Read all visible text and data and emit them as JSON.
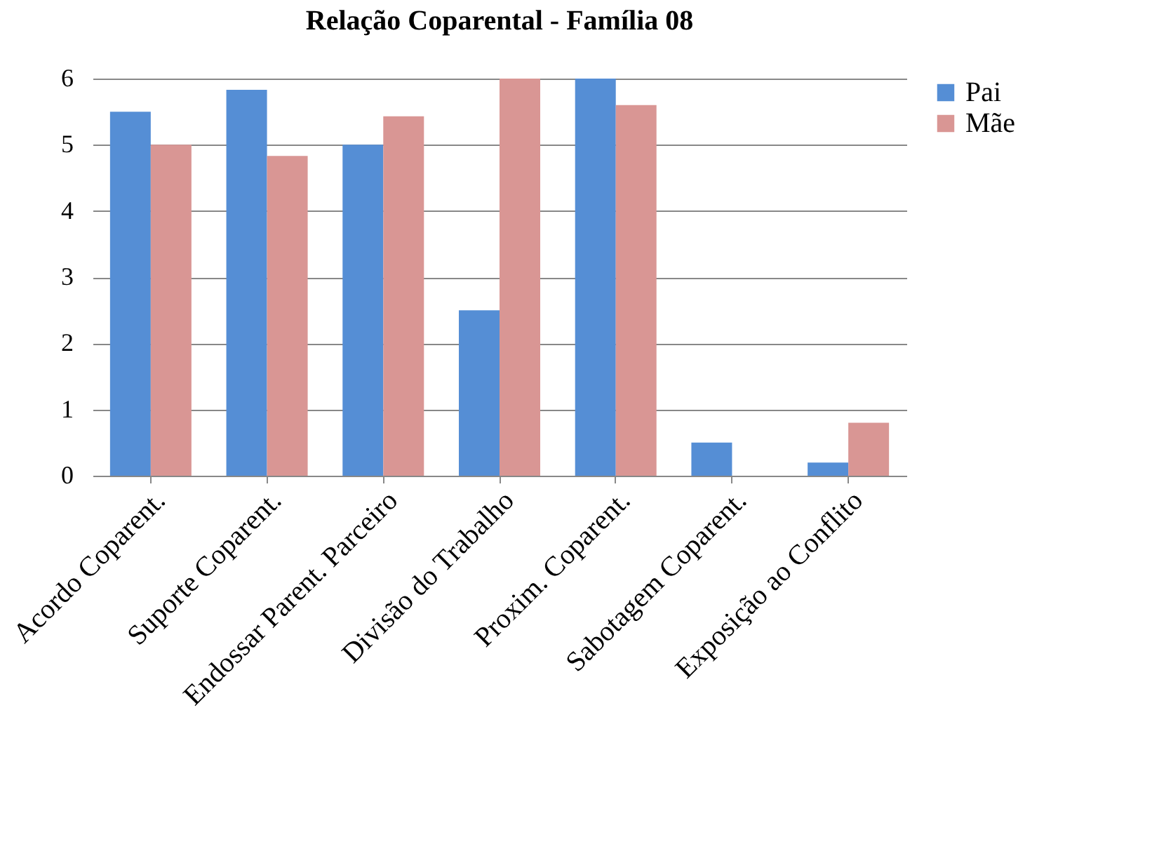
{
  "chart_data": {
    "type": "bar",
    "title": "Relação Coparental - Família 08",
    "categories": [
      "Acordo Coparent.",
      "Suporte Coparent.",
      "Endossar Parent. Parceiro",
      "Divisão do Trabalho",
      "Proxim. Coparent.",
      "Sabotagem Coparent.",
      "Exposição ao Conflito"
    ],
    "series": [
      {
        "name": "Pai",
        "color": "#558ed5",
        "values": [
          5.5,
          5.83,
          5,
          2.5,
          6,
          0.5,
          0.2
        ]
      },
      {
        "name": "Mãe",
        "color": "#d99694",
        "values": [
          5,
          4.83,
          5.43,
          6,
          5.6,
          0,
          0.8
        ]
      }
    ],
    "ylim": [
      0,
      6
    ],
    "yticks": [
      0,
      1,
      2,
      3,
      4,
      5,
      6
    ],
    "grid": "y",
    "legend": "right"
  }
}
